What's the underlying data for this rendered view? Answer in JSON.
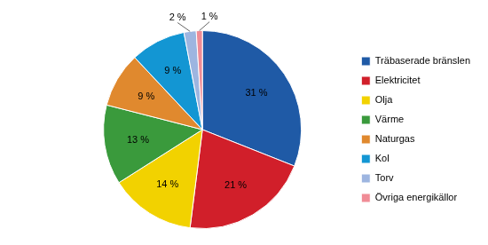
{
  "chart_data": {
    "type": "pie",
    "categories": [
      "Träbaserade bränslen",
      "Elektricitet",
      "Olja",
      "Värme",
      "Naturgas",
      "Kol",
      "Torv",
      "Övriga energikällor"
    ],
    "values": [
      31,
      21,
      14,
      13,
      9,
      9,
      2,
      1
    ],
    "value_labels": [
      "31 %",
      "21 %",
      "14 %",
      "13 %",
      "9 %",
      "9 %",
      "2 %",
      "1 %"
    ],
    "colors": [
      "#1f5aa6",
      "#d11f2a",
      "#f2d200",
      "#3a9a3c",
      "#e0892e",
      "#1396d3",
      "#9db5e0",
      "#f08c96"
    ],
    "legend": "right",
    "data_labels": true
  }
}
